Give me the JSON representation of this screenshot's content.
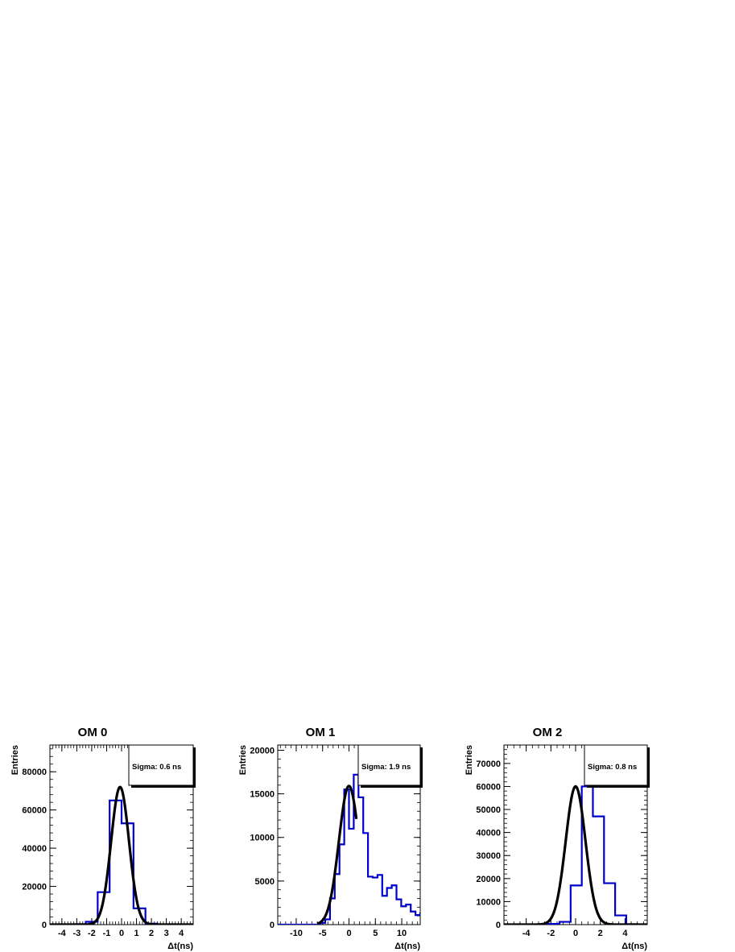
{
  "chart_data": [
    {
      "type": "bar",
      "title": "OM 0",
      "xlabel": "Δt(ns)",
      "ylabel": "Entries",
      "xlim": [
        -4.8,
        4.8
      ],
      "ylim": [
        0,
        94000
      ],
      "xticks": [
        -4,
        -3,
        -2,
        -1,
        0,
        1,
        2,
        3,
        4
      ],
      "yticks": [
        0,
        20000,
        40000,
        60000,
        80000
      ],
      "bins": {
        "start": -4.8,
        "width": 0.8,
        "values": [
          0,
          0,
          200,
          1500,
          17000,
          65000,
          53000,
          8500,
          500,
          0,
          0,
          0
        ]
      },
      "fit": {
        "type": "gaussian",
        "amplitude": 72000,
        "mean": -0.1,
        "sigma": 0.6
      },
      "stats_label": "Sigma: 0.6 ns",
      "colors": {
        "histogram": "#0000cc",
        "fit": "#000000"
      }
    },
    {
      "type": "bar",
      "title": "OM 1",
      "xlabel": "Δt(ns)",
      "ylabel": "Entries",
      "xlim": [
        -13.5,
        13.5
      ],
      "ylim": [
        0,
        20600
      ],
      "xticks": [
        -10,
        -5,
        0,
        5,
        10
      ],
      "yticks": [
        0,
        5000,
        10000,
        15000,
        20000
      ],
      "bins": {
        "start": -13.5,
        "width": 0.9,
        "values": [
          0,
          0,
          0,
          0,
          0,
          0,
          0,
          0,
          0,
          200,
          600,
          3000,
          5800,
          9200,
          15500,
          11000,
          17200,
          14600,
          10500,
          5500,
          5400,
          5700,
          3300,
          4200,
          4500,
          2900,
          2100,
          2300,
          1500,
          1100,
          1300,
          800
        ]
      },
      "fit": {
        "type": "gaussian",
        "amplitude": 15900,
        "mean": 0,
        "sigma": 1.9,
        "x_range": [
          -6,
          1.4
        ]
      },
      "stats_label": "Sigma: 1.9 ns",
      "colors": {
        "histogram": "#0000cc",
        "fit": "#000000"
      }
    },
    {
      "type": "bar",
      "title": "OM 2",
      "xlabel": "Δt(ns)",
      "ylabel": "Entries",
      "xlim": [
        -5.8,
        5.8
      ],
      "ylim": [
        0,
        78000
      ],
      "xticks": [
        -4,
        -2,
        0,
        2,
        4
      ],
      "yticks": [
        0,
        10000,
        20000,
        30000,
        40000,
        50000,
        60000,
        70000
      ],
      "bins": {
        "start": -5.8,
        "width": 0.9,
        "values": [
          0,
          0,
          0,
          0,
          300,
          1200,
          17000,
          60000,
          47000,
          18000,
          4000,
          200,
          0
        ]
      },
      "fit": {
        "type": "gaussian",
        "amplitude": 60000,
        "mean": 0,
        "sigma": 0.8
      },
      "stats_label": "Sigma: 0.8 ns",
      "colors": {
        "histogram": "#0000cc",
        "fit": "#000000"
      }
    }
  ]
}
